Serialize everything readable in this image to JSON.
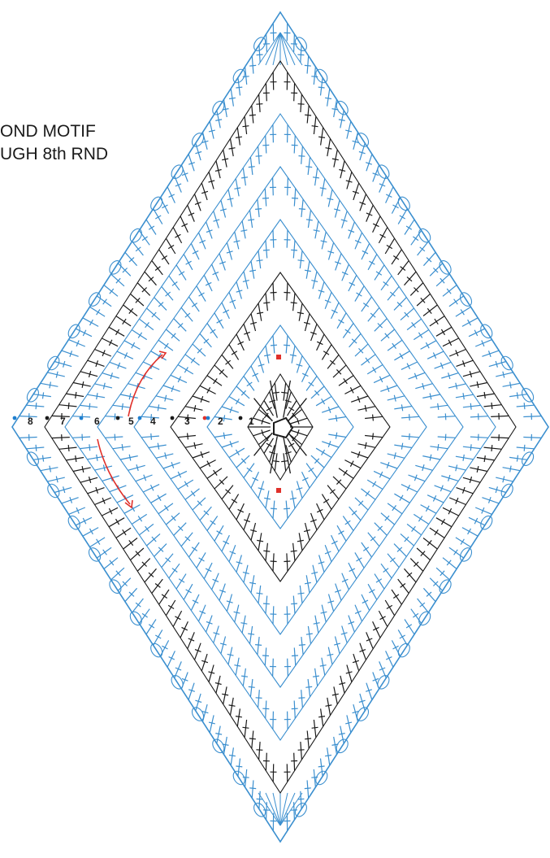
{
  "title": {
    "line1": "OND MOTIF",
    "line2": "UGH 8th RND"
  },
  "round_labels": [
    "8",
    "7",
    "6",
    "5",
    "4",
    "3",
    "2",
    "1"
  ],
  "colors": {
    "black_rounds": "#1a1a1a",
    "blue_rounds": "#3b8fcf",
    "marker_red": "#e0302a",
    "marker_blue": "#1f7fcf"
  },
  "icons": [
    "chain-stitch",
    "double-crochet",
    "treble-crochet",
    "half-double-crochet",
    "slip-stitch",
    "join-arrow"
  ]
}
